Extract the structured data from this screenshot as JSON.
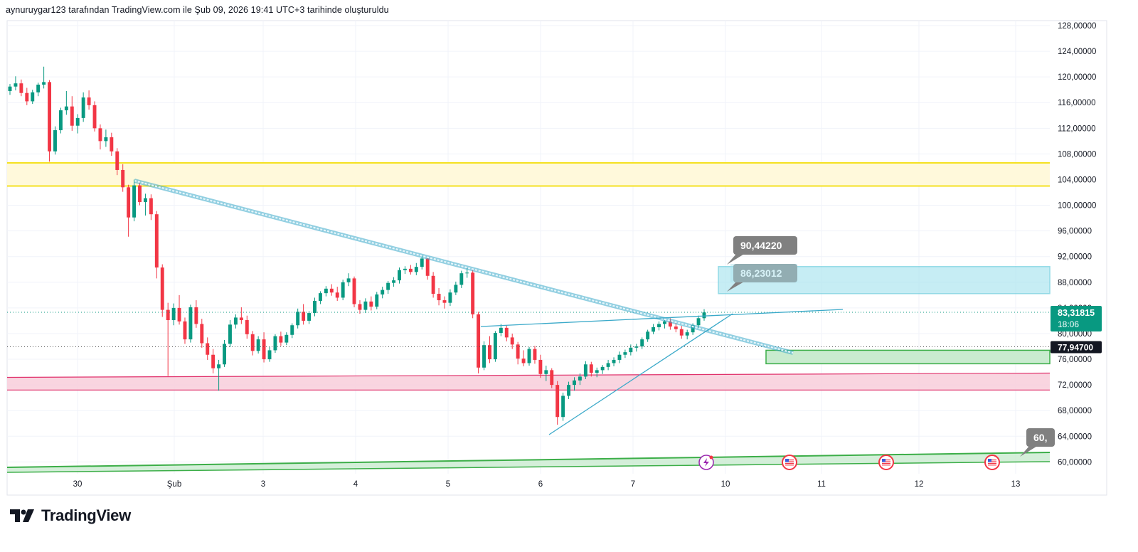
{
  "header": {
    "text": "aynuruygar123 tarafından TradingView.com ile Şub 09, 2026 19:41 UTC+3 tarihinde oluşturuldu"
  },
  "footer": {
    "brand": "TradingView"
  },
  "colors": {
    "up": "#089981",
    "down": "#f23645",
    "grid": "#f0f3fa",
    "yellow_zone": "#fff9db",
    "yellow_line": "#f5e120",
    "pink_zone": "#f8d0dd",
    "pink_line": "#e0316b",
    "blue_box": "#a8e4ef",
    "blue_box_border": "#5bc7da",
    "trend_blue": "#3aa9c9",
    "green_box": "#c9ebcf",
    "green_line": "#3cae48",
    "price_label_bg": "#089981",
    "gray_label_bg": "#808080"
  },
  "chart_data": {
    "type": "candlestick",
    "x_ticks": [
      "30",
      "Şub",
      "3",
      "4",
      "5",
      "6",
      "7",
      "10",
      "11",
      "12",
      "13"
    ],
    "y_ticks": [
      "128,00000",
      "124,00000",
      "120,00000",
      "116,00000",
      "112,00000",
      "108,00000",
      "104,00000",
      "100,00000",
      "96,00000",
      "92,00000",
      "88,00000",
      "84,00000",
      "80,00000",
      "76,00000",
      "72,00000",
      "68,00000",
      "64,00000",
      "60,00000"
    ],
    "ylim": [
      57,
      130
    ],
    "current_price": {
      "value": "83,31815",
      "countdown": "18:06",
      "numeric": 83.32
    },
    "line_price": {
      "value": "77,94700",
      "numeric": 77.95
    },
    "callouts": [
      {
        "text": "90,44220",
        "price": 90.44
      },
      {
        "text": "86,23012",
        "price": 86.23
      },
      {
        "text": "60,",
        "price": 60.6
      }
    ],
    "zones": [
      {
        "name": "yellow",
        "top": 106.6,
        "bottom": 103.0
      },
      {
        "name": "pink",
        "top": 73.4,
        "bottom": 71.2
      },
      {
        "name": "blue",
        "top": 90.44,
        "bottom": 86.23
      },
      {
        "name": "green-box",
        "top": 77.4,
        "bottom": 75.3
      }
    ],
    "candles_ohlc": [
      [
        117.8,
        118.9,
        117.2,
        118.5
      ],
      [
        118.5,
        120.1,
        117.9,
        119.0
      ],
      [
        119.0,
        119.6,
        117.0,
        117.5
      ],
      [
        117.5,
        118.3,
        115.6,
        116.2
      ],
      [
        116.2,
        118.0,
        115.8,
        117.6
      ],
      [
        117.6,
        119.1,
        117.0,
        118.8
      ],
      [
        118.8,
        121.6,
        118.2,
        119.2
      ],
      [
        119.2,
        119.5,
        106.8,
        108.4
      ],
      [
        108.4,
        112.3,
        107.9,
        111.7
      ],
      [
        111.7,
        115.2,
        111.2,
        114.8
      ],
      [
        114.8,
        117.8,
        114.1,
        115.4
      ],
      [
        115.4,
        117.0,
        111.6,
        112.4
      ],
      [
        112.4,
        114.2,
        111.2,
        113.6
      ],
      [
        113.6,
        117.6,
        113.0,
        116.8
      ],
      [
        116.8,
        117.9,
        114.9,
        115.6
      ],
      [
        115.6,
        116.2,
        111.5,
        112.0
      ],
      [
        112.0,
        112.6,
        108.7,
        110.0
      ],
      [
        110.0,
        111.8,
        109.1,
        110.6
      ],
      [
        110.6,
        111.3,
        107.7,
        108.4
      ],
      [
        108.4,
        108.9,
        104.7,
        105.5
      ],
      [
        105.5,
        106.4,
        102.1,
        102.8
      ],
      [
        102.8,
        103.2,
        95.1,
        98.1
      ],
      [
        98.1,
        104.0,
        97.5,
        103.1
      ],
      [
        103.1,
        103.6,
        100.0,
        100.5
      ],
      [
        100.5,
        101.8,
        98.4,
        101.1
      ],
      [
        101.1,
        101.7,
        97.7,
        98.6
      ],
      [
        98.6,
        99.1,
        88.6,
        90.3
      ],
      [
        90.3,
        90.8,
        82.6,
        83.7
      ],
      [
        83.7,
        84.8,
        73.4,
        82.1
      ],
      [
        82.1,
        84.7,
        81.3,
        84.0
      ],
      [
        84.0,
        86.0,
        81.4,
        81.9
      ],
      [
        81.9,
        82.5,
        78.4,
        79.1
      ],
      [
        79.1,
        84.5,
        78.6,
        84.1
      ],
      [
        84.1,
        85.2,
        80.9,
        81.5
      ],
      [
        81.5,
        82.3,
        77.8,
        78.5
      ],
      [
        78.5,
        79.4,
        75.9,
        76.7
      ],
      [
        76.7,
        77.6,
        73.8,
        74.6
      ],
      [
        74.6,
        75.9,
        71.1,
        75.2
      ],
      [
        75.2,
        79.0,
        74.8,
        78.4
      ],
      [
        78.4,
        82.1,
        77.9,
        81.4
      ],
      [
        81.4,
        83.0,
        80.8,
        82.5
      ],
      [
        82.5,
        84.1,
        81.5,
        82.1
      ],
      [
        82.1,
        82.8,
        79.2,
        79.9
      ],
      [
        79.9,
        80.4,
        76.6,
        77.3
      ],
      [
        77.3,
        79.6,
        76.9,
        79.1
      ],
      [
        79.1,
        80.2,
        75.5,
        76.0
      ],
      [
        76.0,
        77.9,
        75.6,
        77.4
      ],
      [
        77.4,
        79.9,
        77.0,
        79.6
      ],
      [
        79.6,
        80.3,
        78.1,
        78.6
      ],
      [
        78.6,
        80.2,
        78.2,
        79.8
      ],
      [
        79.8,
        81.6,
        79.3,
        81.3
      ],
      [
        81.3,
        83.9,
        80.8,
        83.4
      ],
      [
        83.4,
        84.6,
        81.4,
        82.0
      ],
      [
        82.0,
        83.5,
        81.5,
        83.2
      ],
      [
        83.2,
        85.6,
        82.7,
        85.1
      ],
      [
        85.1,
        86.6,
        84.6,
        86.3
      ],
      [
        86.3,
        87.4,
        85.8,
        87.0
      ],
      [
        87.0,
        87.7,
        85.9,
        86.4
      ],
      [
        86.4,
        87.3,
        85.1,
        85.6
      ],
      [
        85.6,
        88.4,
        85.2,
        88.0
      ],
      [
        88.0,
        89.4,
        87.4,
        88.6
      ],
      [
        88.6,
        88.9,
        84.1,
        84.6
      ],
      [
        84.6,
        85.2,
        83.1,
        83.7
      ],
      [
        83.7,
        85.5,
        83.2,
        85.0
      ],
      [
        85.0,
        85.8,
        83.6,
        84.2
      ],
      [
        84.2,
        86.5,
        83.8,
        86.1
      ],
      [
        86.1,
        87.3,
        85.5,
        86.8
      ],
      [
        86.8,
        88.2,
        86.2,
        87.9
      ],
      [
        87.9,
        88.8,
        87.3,
        88.3
      ],
      [
        88.3,
        90.3,
        87.8,
        89.9
      ],
      [
        89.9,
        90.5,
        89.3,
        90.1
      ],
      [
        90.1,
        90.7,
        89.2,
        89.6
      ],
      [
        89.6,
        91.0,
        89.1,
        90.4
      ],
      [
        90.4,
        92.3,
        90.0,
        91.7
      ],
      [
        91.7,
        92.0,
        88.4,
        89.0
      ],
      [
        89.0,
        89.6,
        85.6,
        86.2
      ],
      [
        86.2,
        87.1,
        84.4,
        85.2
      ],
      [
        85.2,
        85.8,
        83.9,
        84.8
      ],
      [
        84.8,
        86.9,
        84.3,
        86.4
      ],
      [
        86.4,
        88.1,
        86.0,
        87.6
      ],
      [
        87.6,
        89.8,
        87.1,
        89.4
      ],
      [
        89.4,
        90.2,
        88.7,
        89.5
      ],
      [
        89.5,
        90.0,
        82.4,
        83.0
      ],
      [
        83.0,
        83.4,
        73.8,
        74.7
      ],
      [
        74.7,
        78.8,
        74.3,
        78.2
      ],
      [
        78.2,
        79.6,
        75.4,
        76.0
      ],
      [
        76.0,
        80.4,
        75.6,
        80.1
      ],
      [
        80.1,
        81.5,
        79.6,
        80.9
      ],
      [
        80.9,
        81.3,
        78.8,
        79.4
      ],
      [
        79.4,
        80.0,
        77.6,
        78.3
      ],
      [
        78.3,
        78.7,
        75.2,
        76.1
      ],
      [
        76.1,
        77.4,
        74.9,
        75.4
      ],
      [
        75.4,
        77.9,
        75.0,
        77.6
      ],
      [
        77.6,
        78.1,
        75.3,
        75.9
      ],
      [
        75.9,
        76.7,
        73.1,
        73.7
      ],
      [
        73.7,
        75.0,
        72.6,
        74.3
      ],
      [
        74.3,
        74.6,
        71.5,
        72.0
      ],
      [
        72.0,
        72.6,
        65.8,
        67.0
      ],
      [
        67.0,
        70.8,
        66.4,
        70.3
      ],
      [
        70.3,
        72.5,
        69.8,
        72.0
      ],
      [
        72.0,
        73.2,
        71.1,
        72.7
      ],
      [
        72.7,
        73.8,
        72.0,
        73.3
      ],
      [
        73.3,
        75.7,
        72.9,
        75.2
      ],
      [
        75.2,
        75.6,
        73.3,
        73.9
      ],
      [
        73.9,
        74.7,
        73.2,
        74.3
      ],
      [
        74.3,
        75.1,
        73.7,
        74.8
      ],
      [
        74.8,
        75.9,
        74.3,
        75.4
      ],
      [
        75.4,
        76.3,
        74.9,
        75.9
      ],
      [
        75.9,
        77.2,
        75.4,
        76.7
      ],
      [
        76.7,
        77.5,
        76.2,
        77.1
      ],
      [
        77.1,
        78.3,
        76.6,
        77.8
      ],
      [
        77.8,
        78.4,
        77.2,
        78.0
      ],
      [
        78.0,
        79.4,
        77.6,
        79.1
      ],
      [
        79.1,
        80.6,
        78.7,
        80.3
      ],
      [
        80.3,
        81.5,
        79.9,
        81.0
      ],
      [
        81.0,
        81.9,
        80.5,
        81.5
      ],
      [
        81.5,
        82.2,
        80.8,
        81.9
      ],
      [
        81.9,
        82.4,
        80.6,
        81.1
      ],
      [
        81.1,
        81.8,
        80.2,
        80.7
      ],
      [
        80.7,
        81.2,
        79.2,
        79.7
      ],
      [
        79.7,
        80.6,
        79.1,
        80.2
      ],
      [
        80.2,
        81.6,
        79.8,
        81.3
      ],
      [
        81.3,
        82.8,
        80.9,
        82.4
      ],
      [
        82.4,
        83.8,
        82.0,
        83.3
      ]
    ]
  }
}
